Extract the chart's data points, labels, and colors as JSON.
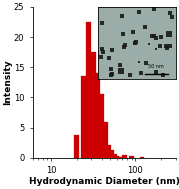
{
  "bar_centers": [
    20,
    24,
    28,
    32,
    36,
    40,
    44,
    48,
    52,
    56,
    60,
    64,
    68,
    75,
    90,
    120
  ],
  "bar_heights": [
    3.8,
    13.5,
    22.5,
    17.5,
    14.0,
    10.5,
    6.0,
    2.2,
    1.3,
    0.6,
    0.3,
    0.15,
    0.1,
    0.5,
    0.3,
    0.15
  ],
  "bar_color": "#cc0000",
  "bar_edge_color": "#cc0000",
  "xlim_log": [
    6,
    300
  ],
  "ylim": [
    0,
    25
  ],
  "yticks": [
    0,
    5,
    10,
    15,
    20,
    25
  ],
  "xlabel": "Hydrodynamic Diameter (nm)",
  "ylabel": "Intensity",
  "xlabel_fontsize": 6.5,
  "ylabel_fontsize": 6.5,
  "tick_fontsize": 6.0,
  "background_color": "#ffffff",
  "inset_bg": "#9aada8",
  "inset_dot_color": "#1a1a1a",
  "inset_scalebar_text": "50 nm"
}
